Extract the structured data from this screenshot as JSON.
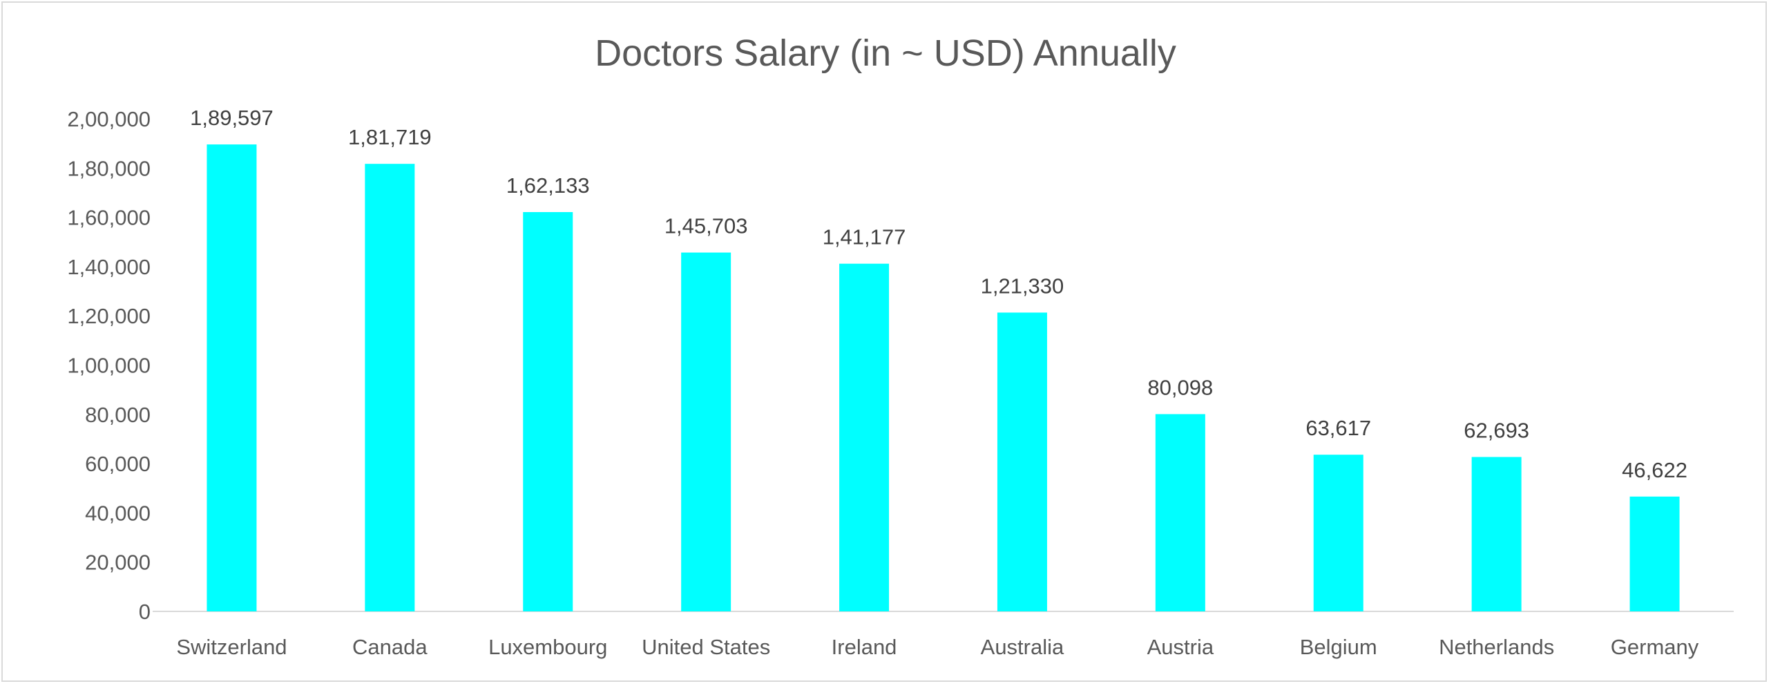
{
  "chart_data": {
    "type": "bar",
    "title": "Doctors Salary (in ~ USD) Annually",
    "xlabel": "",
    "ylabel": "",
    "categories": [
      "Switzerland",
      "Canada",
      "Luxembourg",
      "United States",
      "Ireland",
      "Australia",
      "Austria",
      "Belgium",
      "Netherlands",
      "Germany"
    ],
    "values": [
      189597,
      181719,
      162133,
      145703,
      141177,
      121330,
      80098,
      63617,
      62693,
      46622
    ],
    "value_labels": [
      "1,89,597",
      "1,81,719",
      "1,62,133",
      "1,45,703",
      "1,41,177",
      "1,21,330",
      "80,098",
      "63,617",
      "62,693",
      "46,622"
    ],
    "ylim": [
      0,
      200000
    ],
    "yticks": [
      0,
      20000,
      40000,
      60000,
      80000,
      100000,
      120000,
      140000,
      160000,
      180000,
      200000
    ],
    "ytick_labels": [
      "0",
      "20,000",
      "40,000",
      "60,000",
      "80,000",
      "1,00,000",
      "1,20,000",
      "1,40,000",
      "1,60,000",
      "1,80,000",
      "2,00,000"
    ],
    "grid": false,
    "legend": "none",
    "bar_color": "#00FFFF"
  }
}
